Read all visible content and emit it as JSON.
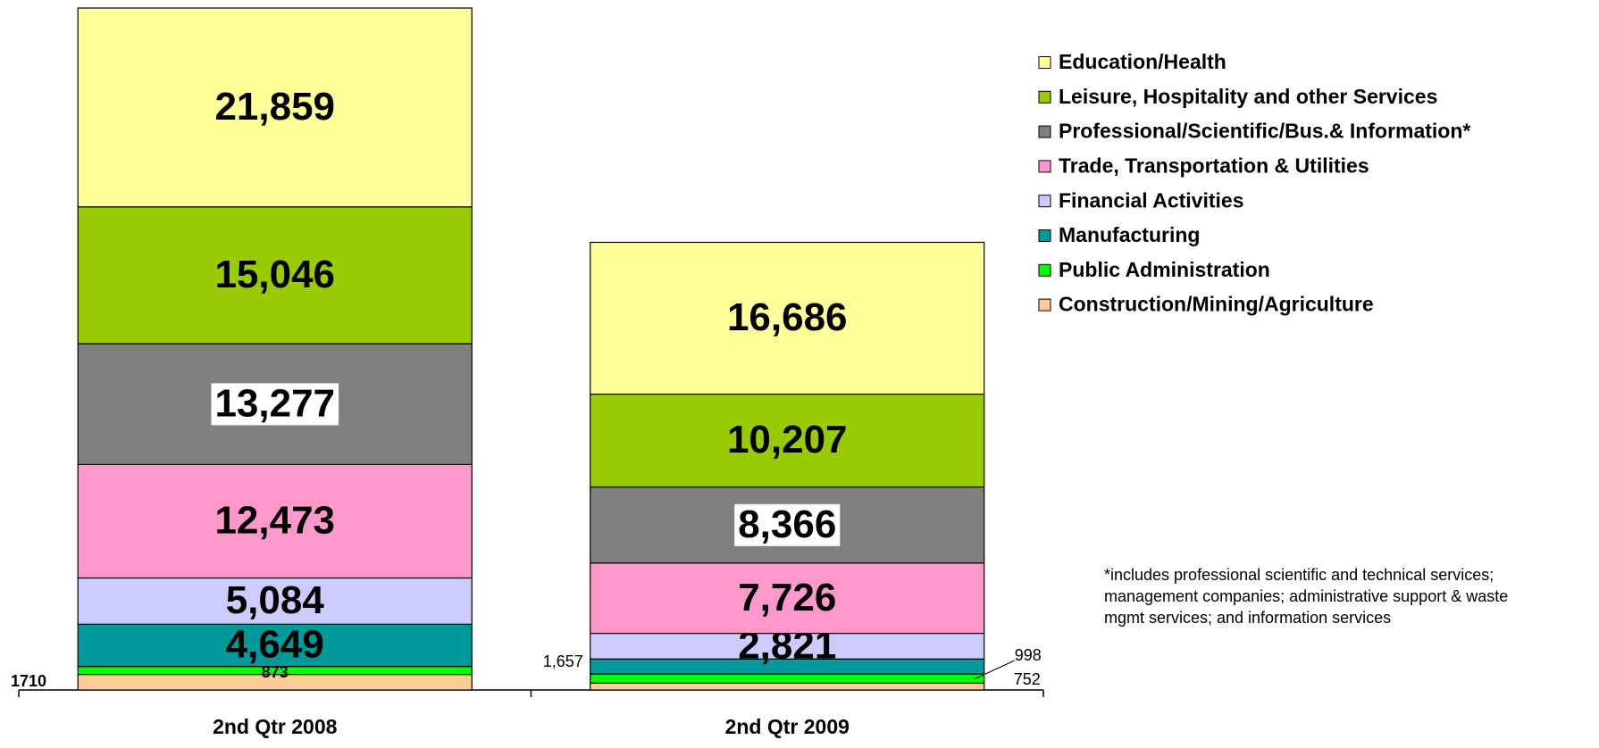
{
  "chart_data": {
    "type": "stacked_bar",
    "categories": [
      "2nd Qtr 2008",
      "2nd Qtr 2009"
    ],
    "series": [
      {
        "name": "Construction/Mining/Agriculture",
        "color": "#FFCC99",
        "values": [
          1710,
          752
        ],
        "value_labels": [
          "1710",
          "752"
        ]
      },
      {
        "name": "Public Administration",
        "color": "#00FF00",
        "values": [
          873,
          998
        ],
        "value_labels": [
          "873",
          "998"
        ]
      },
      {
        "name": "Manufacturing",
        "color": "#009999",
        "values": [
          4649,
          1657
        ],
        "value_labels": [
          "4,649",
          "1,657"
        ]
      },
      {
        "name": "Financial Activities",
        "color": "#CCCCFF",
        "values": [
          5084,
          2821
        ],
        "value_labels": [
          "5,084",
          "2,821"
        ]
      },
      {
        "name": "Trade, Transportation & Utilities",
        "color": "#FF99CC",
        "values": [
          12473,
          7726
        ],
        "value_labels": [
          "12,473",
          "7,726"
        ]
      },
      {
        "name": "Professional/Scientific/Bus.& Information*",
        "color": "#808080",
        "values": [
          13277,
          8366
        ],
        "value_labels": [
          "13,277",
          "8,366"
        ]
      },
      {
        "name": "Leisure, Hospitality and other Services",
        "color": "#99CC00",
        "values": [
          15046,
          10207
        ],
        "value_labels": [
          "15,046",
          "10,207"
        ]
      },
      {
        "name": "Education/Health",
        "color": "#FFFF99",
        "values": [
          21859,
          16686
        ],
        "value_labels": [
          "21,859",
          "16,686"
        ]
      }
    ],
    "annotations": [
      "*includes professional scientific and technical services;",
      "management companies; administrative support & waste",
      "mgmt services; and information services"
    ],
    "legend": "top-right"
  }
}
